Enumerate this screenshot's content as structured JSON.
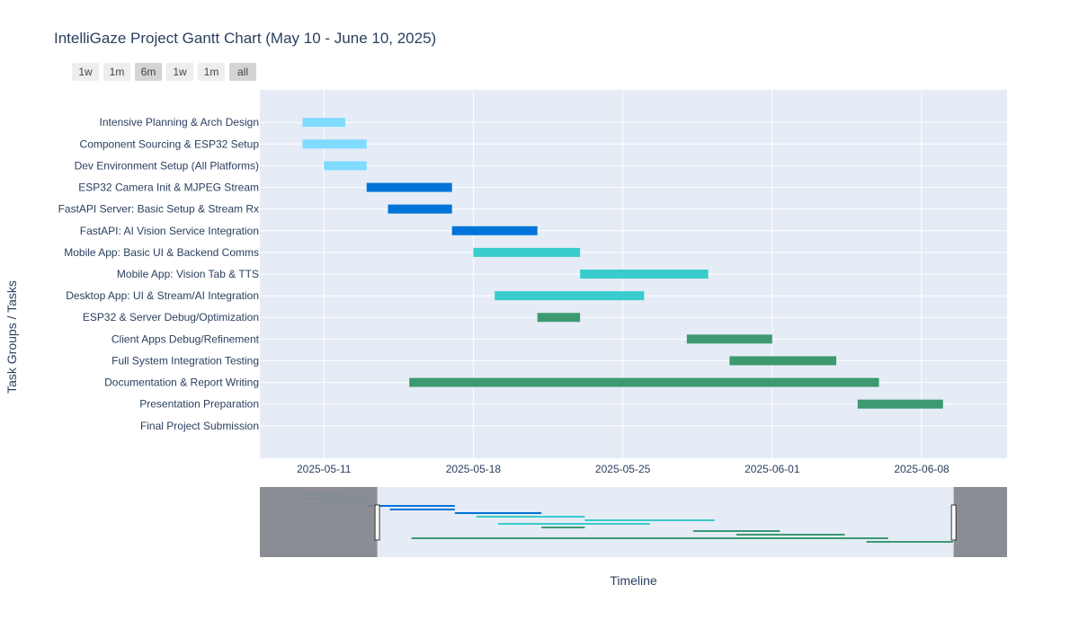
{
  "title": "IntelliGaze Project Gantt Chart (May 10 - June 10, 2025)",
  "range_buttons": [
    {
      "label": "1w",
      "active": false
    },
    {
      "label": "1m",
      "active": false
    },
    {
      "label": "6m",
      "active": true
    },
    {
      "label": "1w",
      "active": false
    },
    {
      "label": "1m",
      "active": false
    },
    {
      "label": "all",
      "active": true
    }
  ],
  "chart_data": {
    "type": "gantt",
    "title": "IntelliGaze Project Gantt Chart (May 10 - June 10, 2025)",
    "xlabel": "Timeline",
    "ylabel": "Task Groups / Tasks",
    "x_range": [
      "2025-05-08",
      "2025-06-12"
    ],
    "x_ticks": [
      "2025-05-11",
      "2025-05-18",
      "2025-05-25",
      "2025-06-01",
      "2025-06-08"
    ],
    "rangeslider": {
      "visible": true,
      "selected_range": [
        "2025-05-13.5",
        "2025-06-09.5"
      ],
      "full_range": [
        "2025-05-08",
        "2025-06-12"
      ]
    },
    "colors": {
      "planning": "#7fdbff",
      "core": "#0074d9",
      "apps": "#39cccc",
      "testing": "#3d9970"
    },
    "tasks": [
      {
        "name": "Intensive Planning & Arch Design",
        "start": "2025-05-10",
        "end": "2025-05-12",
        "color": "#7fdbff"
      },
      {
        "name": "Component Sourcing & ESP32 Setup",
        "start": "2025-05-10",
        "end": "2025-05-13",
        "color": "#7fdbff"
      },
      {
        "name": "Dev Environment Setup (All Platforms)",
        "start": "2025-05-11",
        "end": "2025-05-13",
        "color": "#7fdbff"
      },
      {
        "name": "ESP32 Camera Init & MJPEG Stream",
        "start": "2025-05-13",
        "end": "2025-05-17",
        "color": "#0074d9"
      },
      {
        "name": "FastAPI Server: Basic Setup & Stream Rx",
        "start": "2025-05-14",
        "end": "2025-05-17",
        "color": "#0074d9"
      },
      {
        "name": "FastAPI: AI Vision Service Integration",
        "start": "2025-05-17",
        "end": "2025-05-21",
        "color": "#0074d9"
      },
      {
        "name": "Mobile App: Basic UI & Backend Comms",
        "start": "2025-05-18",
        "end": "2025-05-23",
        "color": "#39cccc"
      },
      {
        "name": "Mobile App: Vision Tab & TTS",
        "start": "2025-05-23",
        "end": "2025-05-29",
        "color": "#39cccc"
      },
      {
        "name": "Desktop App: UI & Stream/AI Integration",
        "start": "2025-05-19",
        "end": "2025-05-26",
        "color": "#39cccc"
      },
      {
        "name": "ESP32 & Server Debug/Optimization",
        "start": "2025-05-21",
        "end": "2025-05-23",
        "color": "#3d9970"
      },
      {
        "name": "Client Apps Debug/Refinement",
        "start": "2025-05-28",
        "end": "2025-06-01",
        "color": "#3d9970"
      },
      {
        "name": "Full System Integration Testing",
        "start": "2025-05-30",
        "end": "2025-06-04",
        "color": "#3d9970"
      },
      {
        "name": "Documentation & Report Writing",
        "start": "2025-05-15",
        "end": "2025-06-06",
        "color": "#3d9970"
      },
      {
        "name": "Presentation Preparation",
        "start": "2025-06-05",
        "end": "2025-06-09",
        "color": "#3d9970"
      },
      {
        "name": "Final Project Submission",
        "start": null,
        "end": null,
        "color": "#3d9970"
      }
    ]
  }
}
